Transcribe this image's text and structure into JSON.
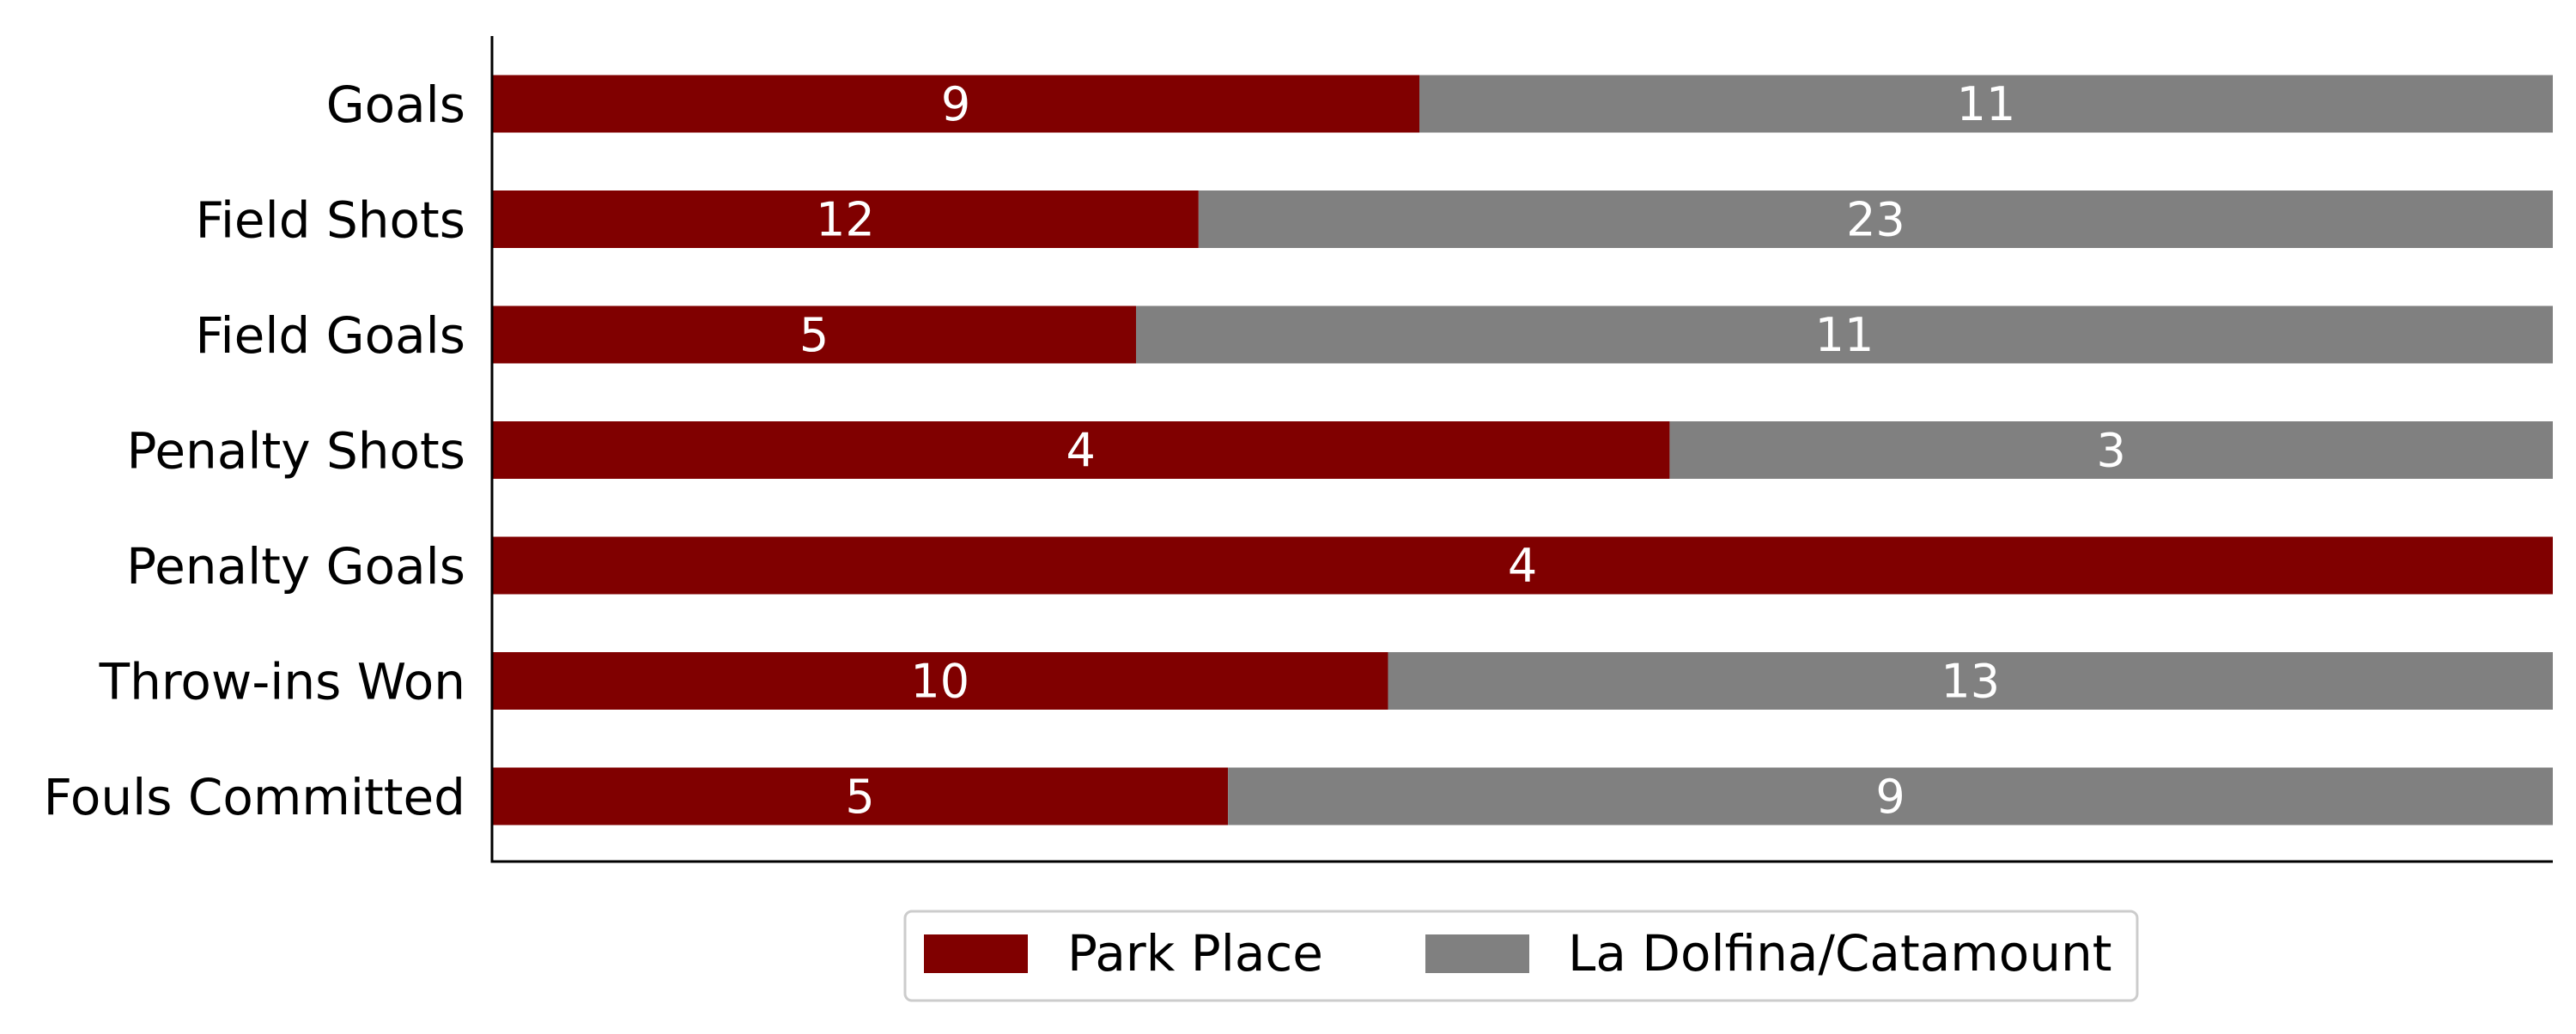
{
  "chart_data": {
    "type": "bar",
    "orientation": "horizontal",
    "stacked": true,
    "normalized": true,
    "categories": [
      "Goals",
      "Field Shots",
      "Field Goals",
      "Penalty Shots",
      "Penalty Goals",
      "Throw-ins Won",
      "Fouls Committed"
    ],
    "series": [
      {
        "name": "Park Place",
        "color": "#800000",
        "values": [
          9,
          12,
          5,
          4,
          4,
          10,
          5
        ]
      },
      {
        "name": "La Dolfina/Catamount",
        "color": "#808080",
        "values": [
          11,
          23,
          11,
          3,
          0,
          13,
          9
        ]
      }
    ],
    "xlim": [
      0,
      1
    ],
    "title": "",
    "xlabel": "",
    "ylabel": "",
    "grid": false,
    "legend_position": "bottom-center"
  }
}
